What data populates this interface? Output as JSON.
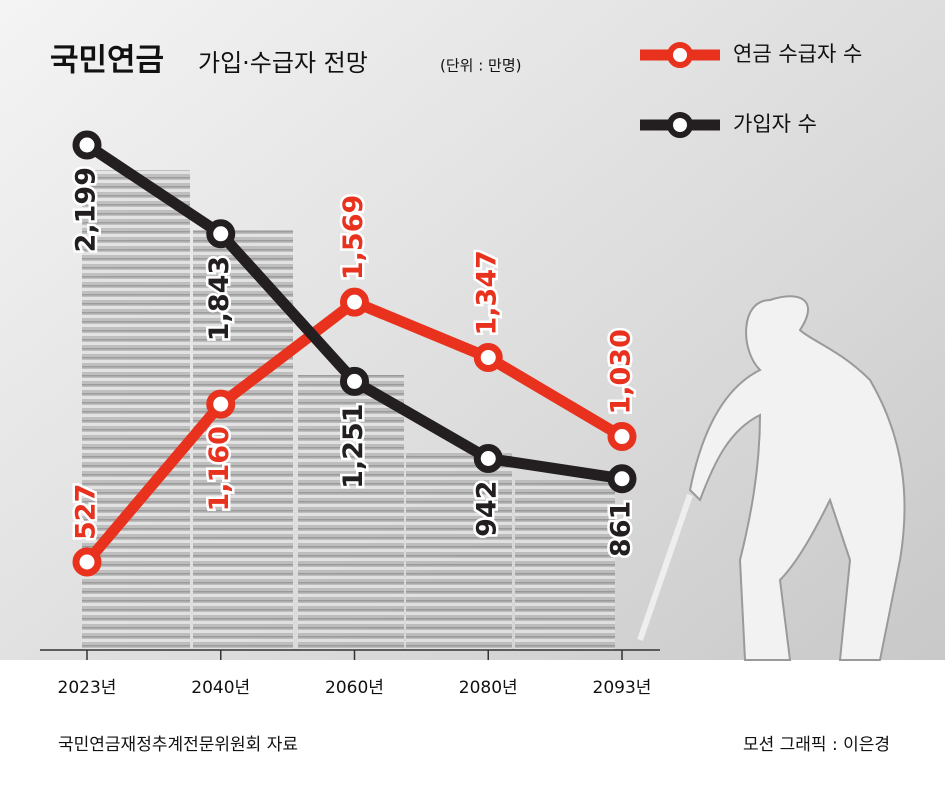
{
  "chart_data": {
    "type": "line",
    "title": "국민연금",
    "subtitle": "가입·수급자 전망",
    "unit": "(단위 : 만명)",
    "categories": [
      "2023년",
      "2040년",
      "2060년",
      "2080년",
      "2093년"
    ],
    "series": [
      {
        "name": "연금 수급자 수",
        "color": "#e8321e",
        "values": [
          527,
          1160,
          1569,
          1347,
          1030
        ],
        "value_labels": [
          "527",
          "1,160",
          "1,569",
          "1,347",
          "1,030"
        ]
      },
      {
        "name": "가입자 수",
        "color": "#231f20",
        "values": [
          2199,
          1843,
          1251,
          942,
          861
        ],
        "value_labels": [
          "2,199",
          "1,843",
          "1,251",
          "942",
          "861"
        ]
      }
    ],
    "source": "국민연금재정추계전문위원회 자료",
    "credit": "모션 그래픽 : 이은경"
  }
}
